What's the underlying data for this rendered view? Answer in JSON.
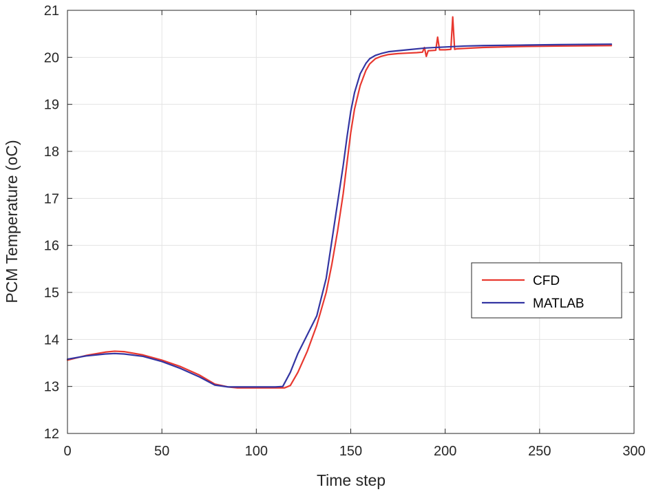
{
  "chart_data": {
    "type": "line",
    "title": "",
    "xlabel": "Time step",
    "ylabel": "PCM Temperature (oC)",
    "xlim": [
      0,
      300
    ],
    "ylim": [
      12,
      21
    ],
    "xticks": [
      0,
      50,
      100,
      150,
      200,
      250,
      300
    ],
    "yticks": [
      12,
      13,
      14,
      15,
      16,
      17,
      18,
      19,
      20,
      21
    ],
    "grid": true,
    "legend_position": "right",
    "series": [
      {
        "name": "CFD",
        "color": "#e8382f",
        "x": [
          0,
          10,
          20,
          25,
          30,
          40,
          50,
          60,
          70,
          78,
          85,
          90,
          100,
          110,
          115,
          118,
          122,
          127,
          132,
          137,
          140,
          143,
          146,
          148,
          150,
          152,
          155,
          158,
          160,
          163,
          166,
          170,
          175,
          180,
          185,
          188,
          189,
          190,
          191,
          195,
          196,
          197,
          200,
          203,
          204,
          205,
          206,
          210,
          220,
          240,
          260,
          288
        ],
        "y": [
          13.56,
          13.66,
          13.73,
          13.75,
          13.74,
          13.67,
          13.56,
          13.42,
          13.24,
          13.05,
          12.99,
          12.97,
          12.97,
          12.97,
          12.97,
          13.02,
          13.3,
          13.75,
          14.3,
          15.0,
          15.6,
          16.3,
          17.1,
          17.75,
          18.4,
          18.9,
          19.4,
          19.72,
          19.86,
          19.97,
          20.02,
          20.06,
          20.08,
          20.09,
          20.1,
          20.11,
          20.21,
          20.02,
          20.14,
          20.15,
          20.43,
          20.16,
          20.16,
          20.17,
          20.86,
          20.17,
          20.18,
          20.19,
          20.21,
          20.23,
          20.24,
          20.25
        ]
      },
      {
        "name": "MATLAB",
        "color": "#3335a2",
        "x": [
          0,
          10,
          20,
          25,
          30,
          40,
          50,
          60,
          70,
          78,
          85,
          90,
          100,
          110,
          114,
          118,
          122,
          127,
          132,
          137,
          140,
          143,
          146,
          148,
          150,
          152,
          155,
          158,
          160,
          163,
          166,
          170,
          175,
          180,
          190,
          200,
          210,
          220,
          240,
          260,
          288
        ],
        "y": [
          13.58,
          13.65,
          13.69,
          13.7,
          13.69,
          13.64,
          13.53,
          13.38,
          13.2,
          13.03,
          12.99,
          12.99,
          12.99,
          12.99,
          13.0,
          13.3,
          13.7,
          14.1,
          14.5,
          15.3,
          16.1,
          16.9,
          17.7,
          18.3,
          18.85,
          19.25,
          19.65,
          19.87,
          19.97,
          20.04,
          20.08,
          20.12,
          20.14,
          20.16,
          20.2,
          20.22,
          20.24,
          20.25,
          20.26,
          20.27,
          20.28
        ]
      }
    ]
  }
}
